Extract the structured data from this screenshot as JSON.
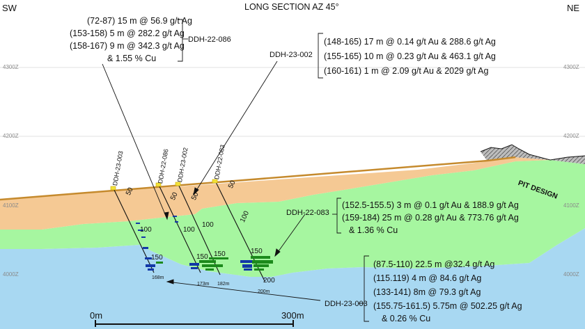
{
  "header": {
    "title": "LONG SECTION AZ 45°",
    "left": "SW",
    "right": "NE"
  },
  "elevations": {
    "e4300": "4300Z",
    "e4200": "4200Z",
    "e4100": "4100Z",
    "e4000": "4000Z"
  },
  "pit_label": "PIT DESIGN",
  "holes": {
    "h086": {
      "id": "DDH-22-086",
      "lines": [
        "(72-87) 15 m @ 56.9 g/t Ag",
        "(153-158) 5 m @ 282.2 g/t Ag",
        "(158-167) 9 m @ 342.3 g/t Ag",
        "& 1.55 % Cu"
      ]
    },
    "h002": {
      "id": "DDH-23-002",
      "lines": [
        "(148-165) 17 m @ 0.14 g/t Au & 288.6 g/t Ag",
        "(155-165) 10 m @ 0.23 g/t Au & 463.1 g/t Ag",
        "(160-161) 1 m @ 2.09 g/t Au & 2029 g/t Ag"
      ]
    },
    "h083": {
      "id": "DDH-22-083",
      "lines": [
        "(152.5-155.5) 3 m @ 0.1 g/t Au & 188.9 g/t Ag",
        "(159-184) 25 m @ 0.28 g/t Au & 773.76 g/t Ag",
        "& 1.36 % Cu"
      ]
    },
    "h003": {
      "id": "DDH-23-003",
      "lines": [
        "(87.5-110) 22.5 m @32.4 g/t Ag",
        "(115.119) 4 m @ 84.6 g/t Ag",
        "(133-141) 8m @ 79.3 g/t Ag",
        "(155.75-161.5) 5.75m @ 502.25 g/t Ag",
        "& 0.26 % Cu"
      ]
    }
  },
  "collar_labels": {
    "c003": "DDH-23-003",
    "c086": "DDH-22-086",
    "c002": "DDH-23-002",
    "c083": "DDH-22-083"
  },
  "depths": {
    "d50": "50",
    "d100": "100",
    "d150": "150",
    "d200": "200"
  },
  "eoh": {
    "e003": "168m",
    "e086": "173m",
    "e002": "182m",
    "e083": "200m"
  },
  "scale": {
    "start": "0m",
    "end": "300m"
  },
  "colors": {
    "overburden": "#f5c994",
    "green_zone": "#a6f6a0",
    "blue_zone": "#a8d8f2",
    "surface": "#c58a2d",
    "pit": "#8a8a8a"
  }
}
